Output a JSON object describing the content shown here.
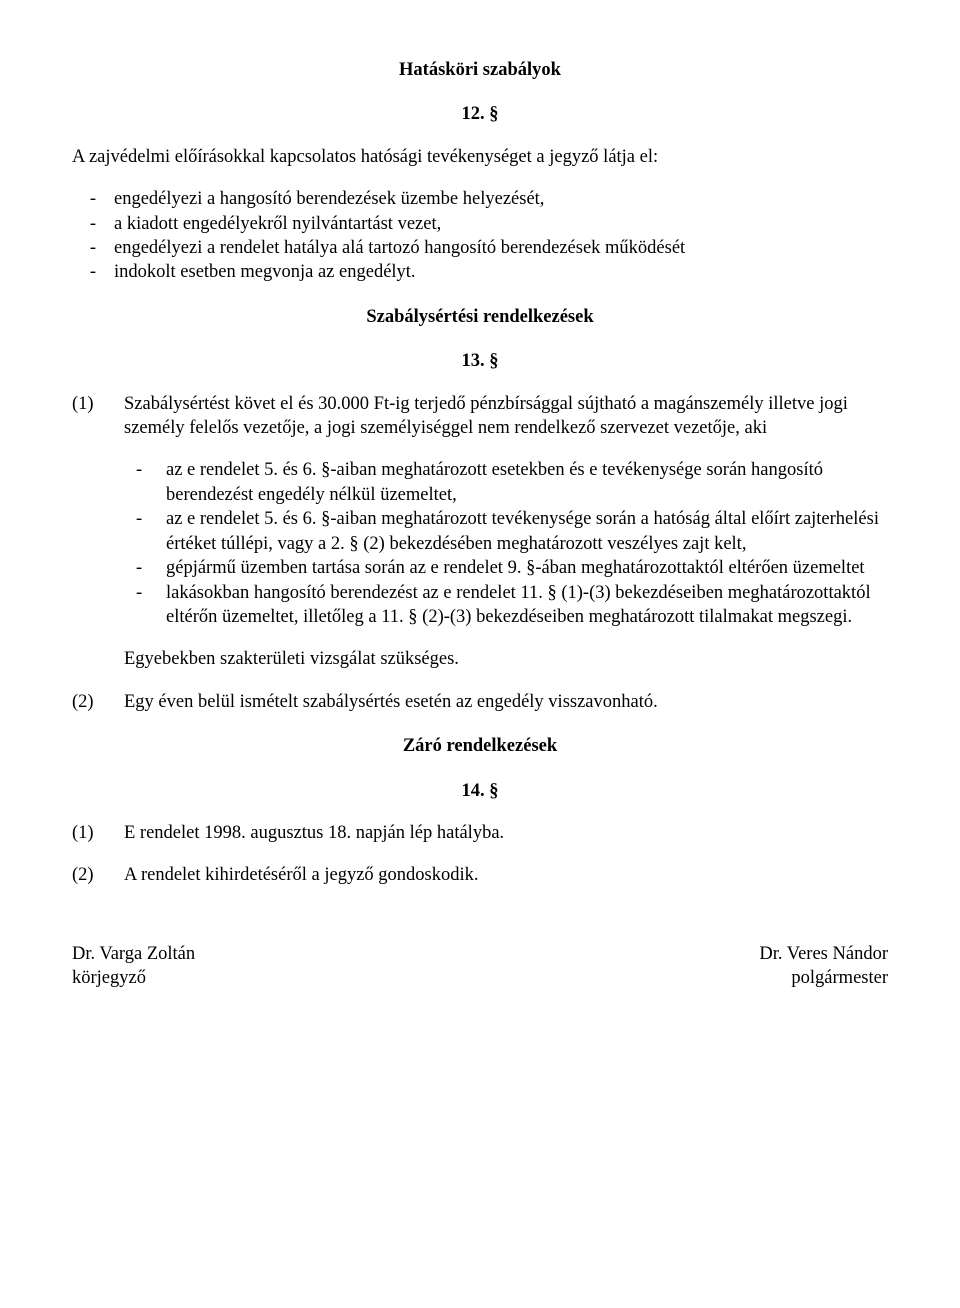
{
  "heading1": "Hatásköri szabályok",
  "sec12": "12. §",
  "para12_intro": "A zajvédelmi előírásokkal kapcsolatos hatósági tevékenységet a jegyző látja el:",
  "para12_items": [
    "engedélyezi a hangosító berendezések üzembe helyezését,",
    "a kiadott engedélyekről nyilvántartást vezet,",
    "engedélyezi a rendelet hatálya alá tartozó hangosító berendezések működését",
    "indokolt esetben megvonja az engedélyt."
  ],
  "heading2": "Szabálysértési rendelkezések",
  "sec13": "13. §",
  "p13_1_num": "(1)",
  "p13_1_text": "Szabálysértést követ el és 30.000 Ft-ig terjedő  pénzbírsággal sújtható a magánszemély illetve jogi személy felelős vezetője, a jogi személyiséggel nem rendelkező szervezet vezetője, aki",
  "p13_1_items": [
    "az e rendelet 5. és 6. §-aiban meghatározott esetekben és e tevékenysége során hangosító berendezést engedély nélkül üzemeltet,",
    "az e rendelet 5. és 6. §-aiban meghatározott tevékenysége során a hatóság által előírt zajterhelési értéket túllépi, vagy a 2. § (2) bekezdésében meghatározott veszélyes zajt kelt,",
    "gépjármű üzemben tartása során az e rendelet 9. §-ában meghatározottaktól eltérően üzemeltet",
    "lakásokban hangosító berendezést az e rendelet 11. § (1)-(3) bekezdéseiben meghatározottaktól eltérőn üzemeltet, illetőleg a 11. § (2)-(3) bekezdéseiben meghatározott tilalmakat megszegi."
  ],
  "p13_1_extra": "Egyebekben szakterületi vizsgálat szükséges.",
  "p13_2_num": "(2)",
  "p13_2_text": "Egy éven belül ismételt szabálysértés esetén az engedély visszavonható.",
  "heading3": "Záró rendelkezések",
  "sec14": "14. §",
  "p14_1_num": "(1)",
  "p14_1_text": "E rendelet 1998. augusztus 18. napján lép hatályba.",
  "p14_2_num": "(2)",
  "p14_2_text": "A rendelet kihirdetéséről a jegyző gondoskodik.",
  "sig_left_name": "Dr. Varga Zoltán",
  "sig_left_title": "körjegyző",
  "sig_right_name": "Dr. Veres Nándor",
  "sig_right_title": "polgármester"
}
